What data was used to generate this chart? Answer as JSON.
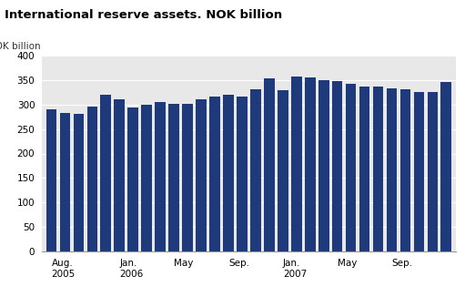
{
  "title": "International reserve assets. NOK billion",
  "ylabel": "NOK billion",
  "bar_color": "#1f3a7a",
  "values": [
    290,
    283,
    281,
    296,
    320,
    311,
    294,
    300,
    305,
    301,
    302,
    310,
    315,
    320,
    315,
    330,
    353,
    328,
    356,
    355,
    349,
    348,
    341,
    337,
    337,
    333,
    331,
    325,
    326,
    346
  ],
  "ylim": [
    0,
    400
  ],
  "yticks": [
    0,
    50,
    100,
    150,
    200,
    250,
    300,
    350,
    400
  ],
  "tick_positions": [
    0,
    5,
    9,
    13,
    17,
    21,
    25
  ],
  "tick_labels": [
    "Aug.\n2005",
    "Jan.\n2006",
    "May",
    "Sep.",
    "Jan.\n2007",
    "May",
    "Sep."
  ],
  "background_color": "#ffffff",
  "plot_bg_color": "#e8e8e8",
  "grid_color": "#ffffff",
  "title_fontsize": 9.5,
  "axis_fontsize": 7.5
}
